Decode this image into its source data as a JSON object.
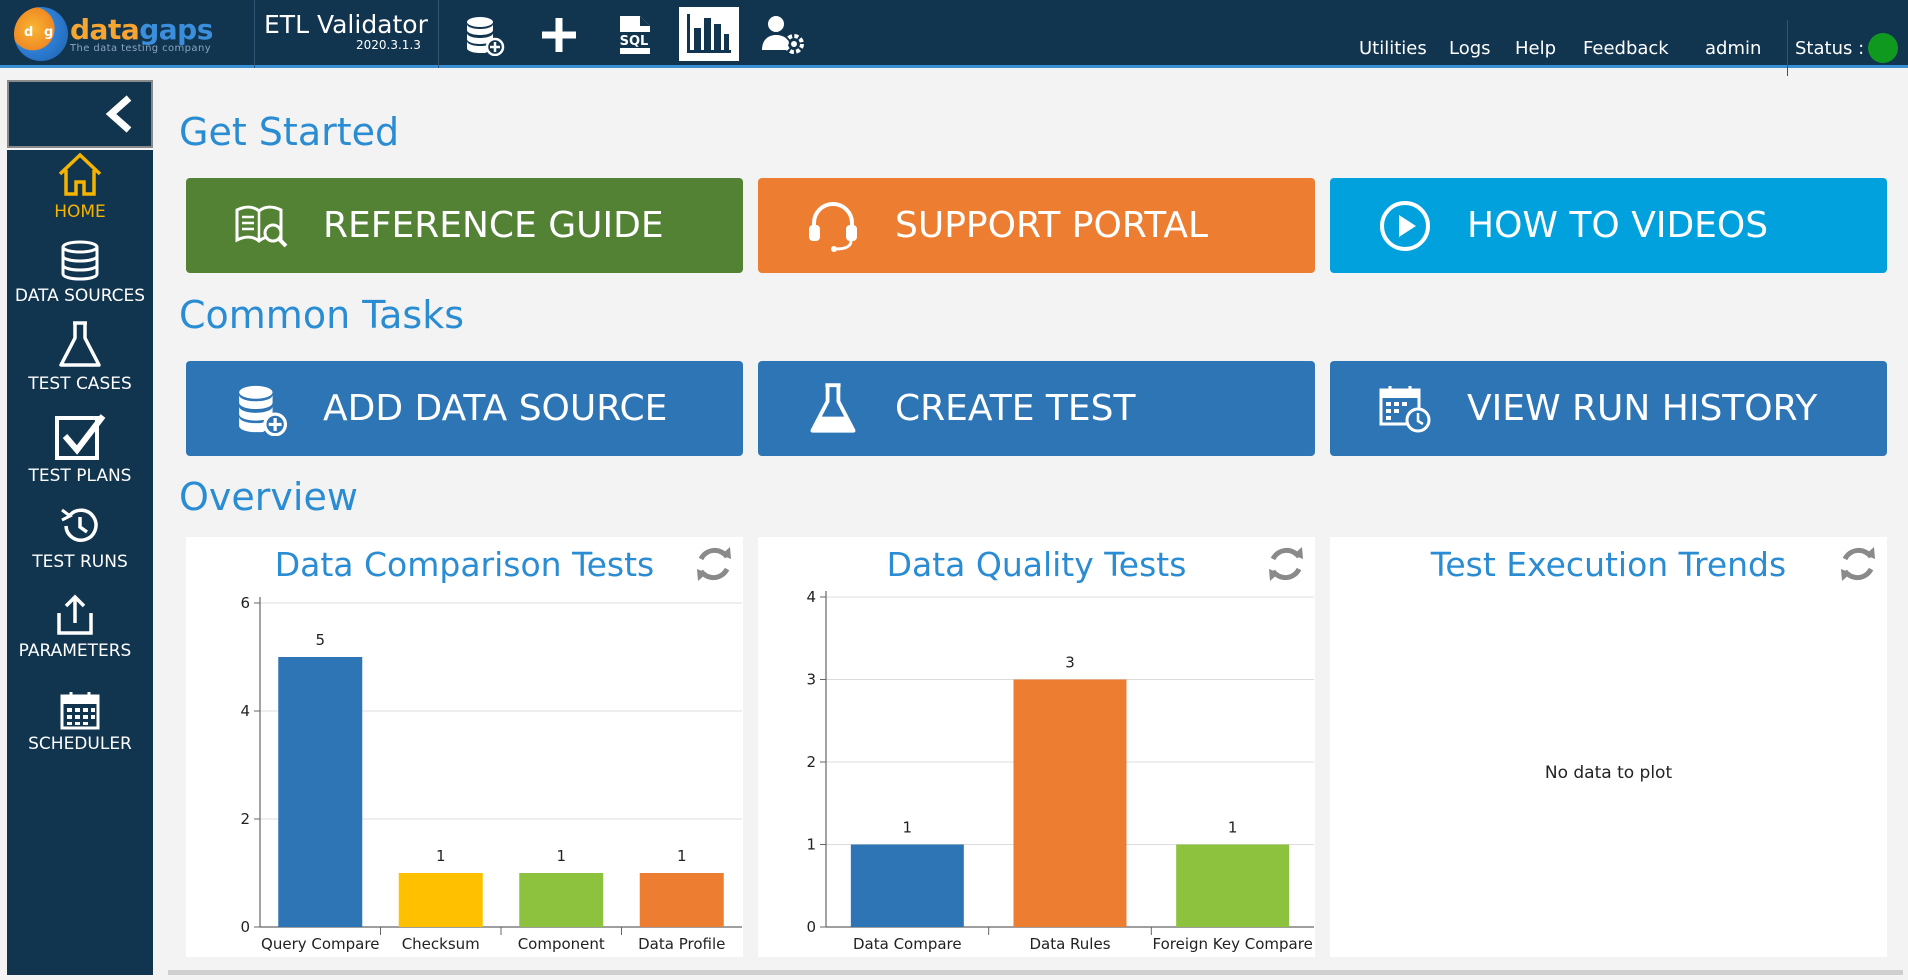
{
  "logo": {
    "word_left": "data",
    "word_right": "gaps",
    "tagline": "The data testing company",
    "disc_left": "d",
    "disc_right": "g"
  },
  "app": {
    "title": "ETL Validator",
    "version": "2020.3.1.3"
  },
  "toolbar": {
    "icons": [
      "database-add-icon",
      "plus-icon",
      "sql-icon",
      "bar-chart-icon",
      "users-gear-icon"
    ]
  },
  "nav": {
    "utilities": "Utilities",
    "logs": "Logs",
    "help": "Help",
    "feedback": "Feedback",
    "user": "admin",
    "status_label": "Status :"
  },
  "colors": {
    "status_ok": "#0f9a1f",
    "green": "#548235",
    "orange": "#ed7d31",
    "cyan": "#00a1dc",
    "blue": "#2e75b6",
    "yellow": "#ffc000",
    "lime": "#8dc23f"
  },
  "sidebar": {
    "items": [
      {
        "label": "HOME",
        "icon": "home-icon",
        "active": true
      },
      {
        "label": "DATA SOURCES",
        "icon": "database-icon"
      },
      {
        "label": "TEST CASES",
        "icon": "flask-icon"
      },
      {
        "label": "TEST PLANS",
        "icon": "checkbox-icon"
      },
      {
        "label": "TEST RUNS",
        "icon": "history-icon"
      },
      {
        "label": "PARAMETERS",
        "icon": "upload-icon"
      },
      {
        "label": "SCHEDULER",
        "icon": "calendar-icon"
      }
    ]
  },
  "sections": {
    "get_started": "Get Started",
    "common_tasks": "Common Tasks",
    "overview": "Overview"
  },
  "get_started": [
    {
      "label": "REFERENCE GUIDE",
      "icon": "book-search-icon"
    },
    {
      "label": "SUPPORT PORTAL",
      "icon": "headset-icon"
    },
    {
      "label": "HOW TO VIDEOS",
      "icon": "play-circle-icon"
    }
  ],
  "common_tasks": [
    {
      "label": "ADD DATA SOURCE",
      "icon": "database-add-icon"
    },
    {
      "label": "CREATE TEST",
      "icon": "flask-icon"
    },
    {
      "label": "VIEW RUN HISTORY",
      "icon": "calendar-clock-icon"
    }
  ],
  "panels": {
    "comparison_title": "Data Comparison Tests",
    "quality_title": "Data Quality Tests",
    "trends_title": "Test Execution Trends",
    "trends_empty": "No data to plot"
  },
  "chart_data": [
    {
      "type": "bar",
      "title": "Data Comparison Tests",
      "categories": [
        "Query Compare",
        "Checksum",
        "Component",
        "Data Profile"
      ],
      "values": [
        5,
        1,
        1,
        1
      ],
      "colors": [
        "#2e75b6",
        "#ffc000",
        "#8dc23f",
        "#ed7d31"
      ],
      "ylim": [
        0,
        6
      ],
      "yticks": [
        0,
        2,
        4,
        6
      ],
      "grid": true
    },
    {
      "type": "bar",
      "title": "Data Quality Tests",
      "categories": [
        "Data Compare",
        "Data Rules",
        "Foreign Key Compare"
      ],
      "values": [
        1,
        3,
        1
      ],
      "colors": [
        "#2e75b6",
        "#ed7d31",
        "#8dc23f"
      ],
      "ylim": [
        0,
        4
      ],
      "yticks": [
        0,
        1,
        2,
        3,
        4
      ],
      "grid": true
    }
  ]
}
